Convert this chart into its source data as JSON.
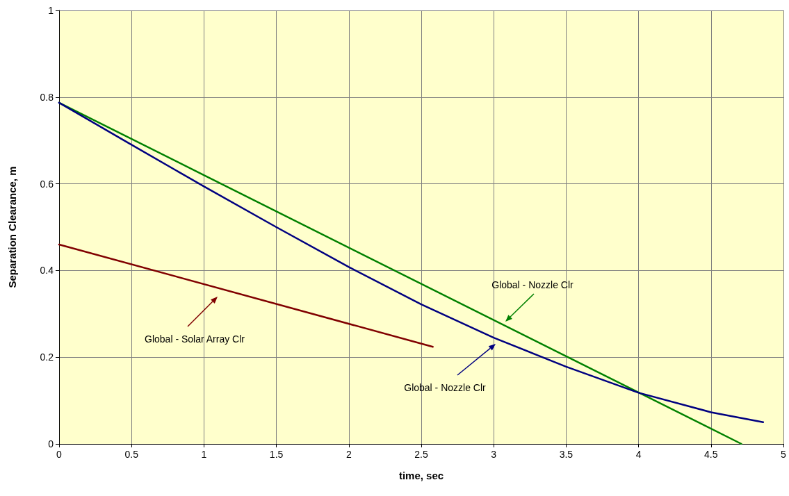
{
  "chart_data": {
    "type": "line",
    "xlabel": "time, sec",
    "ylabel": "Separation Clearance, m",
    "xlim": [
      0,
      5
    ],
    "xticks": [
      0,
      0.5,
      1,
      1.5,
      2,
      2.5,
      3,
      3.5,
      4,
      4.5,
      5
    ],
    "ylim": [
      0,
      1
    ],
    "yticks": [
      0,
      0.2,
      0.4,
      0.6,
      0.8,
      1
    ],
    "grid": true,
    "marker": "none",
    "line_style": "solid",
    "series": [
      {
        "color": "#008000",
        "x": [
          0,
          4.71
        ],
        "values": [
          0.787,
          0
        ]
      },
      {
        "color": "#000080",
        "x": [
          0,
          0.5,
          1,
          1.5,
          2,
          2.5,
          3,
          3.5,
          4,
          4.5,
          4.86
        ],
        "values": [
          0.787,
          0.69,
          0.594,
          0.5,
          0.408,
          0.322,
          0.245,
          0.178,
          0.118,
          0.073,
          0.05
        ]
      },
      {
        "color": "#800000",
        "x": [
          0,
          2.58
        ],
        "values": [
          0.46,
          0.224
        ]
      }
    ],
    "annotations": [
      "Global - Nozzle Clr",
      "Global - Nozzle Clr",
      "Global - Solar Array Clr"
    ]
  }
}
